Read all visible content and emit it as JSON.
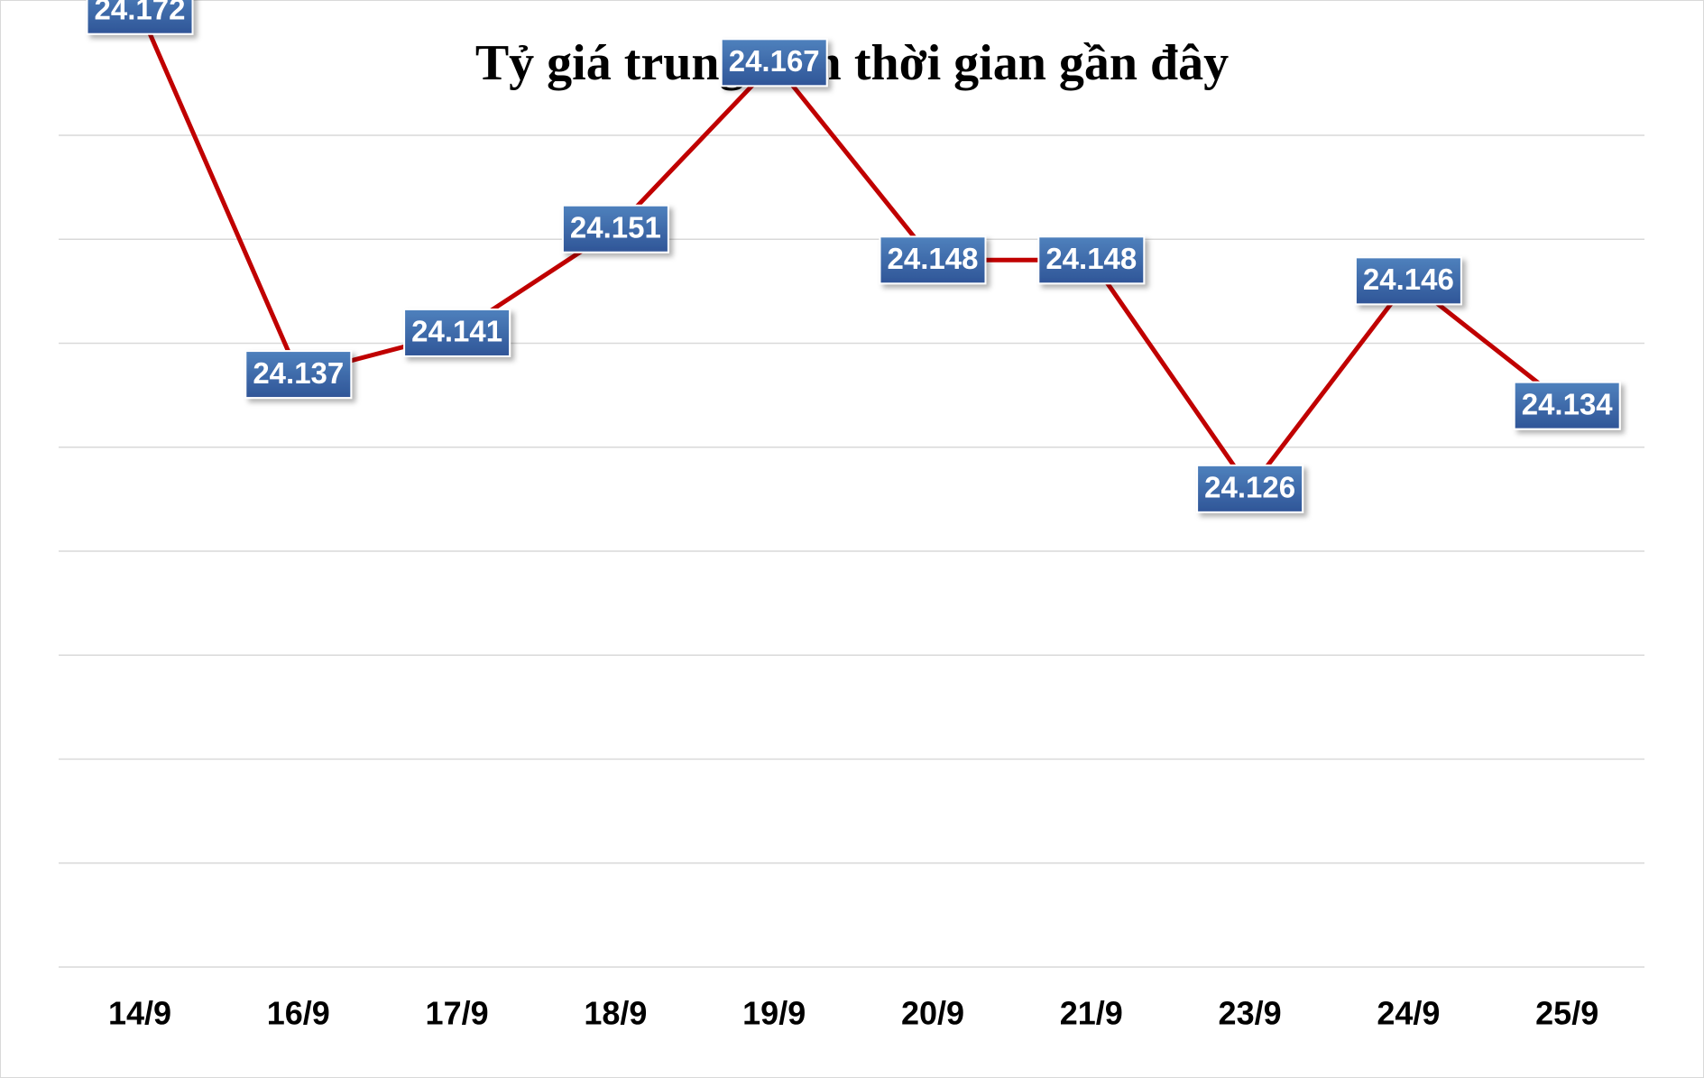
{
  "chart_data": {
    "type": "line",
    "title": "Tỷ giá trung tâm thời gian gần đây",
    "categories": [
      "14/9",
      "16/9",
      "17/9",
      "18/9",
      "19/9",
      "20/9",
      "21/9",
      "23/9",
      "24/9",
      "25/9"
    ],
    "values": [
      24.172,
      24.137,
      24.141,
      24.151,
      24.167,
      24.148,
      24.148,
      24.126,
      24.146,
      24.134
    ],
    "value_labels": [
      "24.172",
      "24.137",
      "24.141",
      "24.151",
      "24.167",
      "24.148",
      "24.148",
      "24.126",
      "24.146",
      "24.134"
    ],
    "xlabel": "",
    "ylabel": "",
    "ylim": [
      24.08,
      24.16
    ],
    "y_axis_labels_shown": false,
    "grid": true,
    "legend": "none",
    "colors": {
      "line": "#c00000",
      "label_fill_light": "#4f81bd",
      "label_fill_dark": "#2f5597",
      "label_text": "#ffffff",
      "gridline": "#d9d9d9"
    }
  }
}
